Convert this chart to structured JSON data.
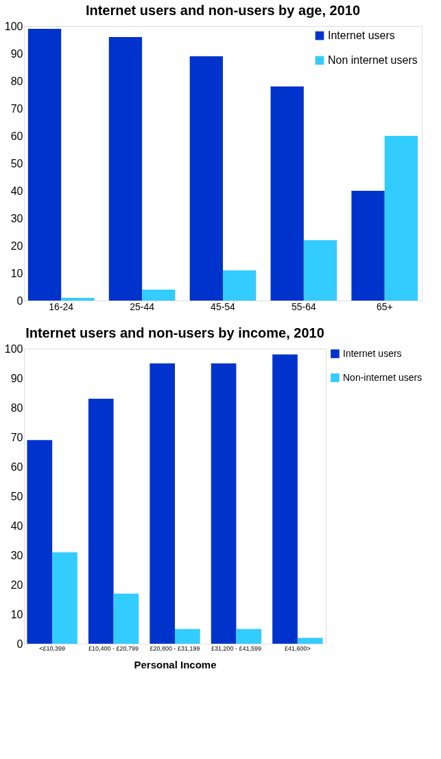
{
  "chart_data": [
    {
      "type": "bar",
      "title": "Internet users and non-users by age, 2010",
      "categories": [
        "16-24",
        "25-44",
        "45-54",
        "55-64",
        "65+"
      ],
      "series": [
        {
          "name": "Internet users",
          "color": "#0033cc",
          "values": [
            99,
            96,
            89,
            78,
            40
          ]
        },
        {
          "name": "Non internet users",
          "color": "#33ccff",
          "values": [
            1,
            4,
            11,
            22,
            60
          ]
        }
      ],
      "ylim": [
        0,
        100
      ],
      "yticks": [
        0,
        10,
        20,
        30,
        40,
        50,
        60,
        70,
        80,
        90,
        100
      ],
      "grid": false,
      "legend": "top right"
    },
    {
      "type": "bar",
      "title": "Internet users and non-users by income, 2010",
      "xlabel": "Personal Income",
      "categories": [
        "<£10,399",
        "£10,400 - £20,799",
        "£20,800 - £31,199",
        "£31,200 - £41,599",
        "£41,600>"
      ],
      "series": [
        {
          "name": "Internet users",
          "color": "#0033cc",
          "values": [
            69,
            83,
            95,
            95,
            98
          ]
        },
        {
          "name": "Non-internet users",
          "color": "#33ccff",
          "values": [
            31,
            17,
            5,
            5,
            2
          ]
        }
      ],
      "ylim": [
        0,
        100
      ],
      "yticks": [
        0,
        10,
        20,
        30,
        40,
        50,
        60,
        70,
        80,
        90,
        100
      ],
      "grid": false,
      "legend": "right"
    }
  ]
}
